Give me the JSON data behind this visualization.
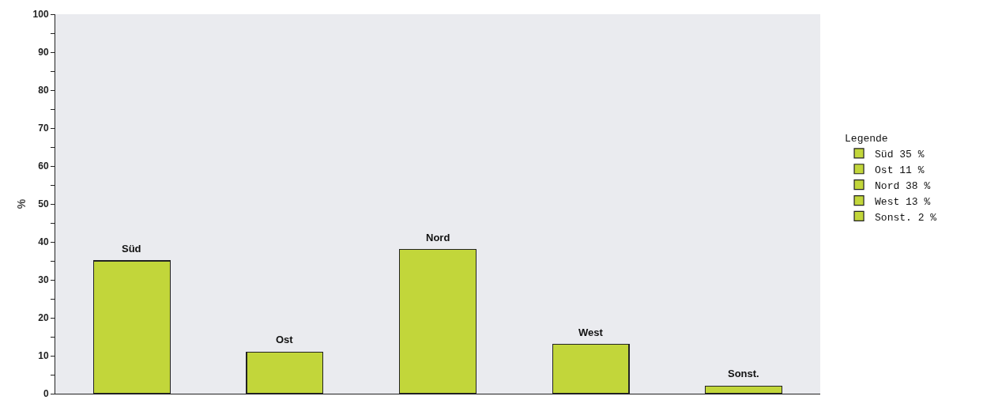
{
  "chart_data": {
    "type": "bar",
    "ylabel": "%",
    "legend_title": "Legende",
    "legend": "right",
    "tick_labels": "y",
    "stacked": true,
    "categories": [
      "Süd",
      "Ost",
      "Nord",
      "West",
      "Sonst."
    ],
    "series": [
      {
        "name": "Süd 35 %",
        "color": "#c2d63a",
        "values": [
          35,
          null,
          null,
          null,
          null
        ]
      },
      {
        "name": "Ost 11 %",
        "color": "#c2d63a",
        "values": [
          null,
          11,
          null,
          null,
          null
        ]
      },
      {
        "name": "Nord 38 %",
        "color": "#c2d63a",
        "values": [
          null,
          null,
          38,
          null,
          null
        ]
      },
      {
        "name": "West 13 %",
        "color": "#c2d63a",
        "values": [
          null,
          null,
          null,
          13,
          null
        ]
      },
      {
        "name": "Sonst. 2 %",
        "color": "#c2d63a",
        "values": [
          null,
          null,
          null,
          null,
          2
        ]
      }
    ],
    "ylim": [
      0,
      100
    ],
    "yticks": [
      0,
      {
        "value": 5,
        "label": null
      },
      10,
      {
        "value": 15,
        "label": null
      },
      20,
      {
        "value": 25,
        "label": null
      },
      30,
      {
        "value": 35,
        "label": null
      },
      40,
      {
        "value": 45,
        "label": null
      },
      50,
      {
        "value": 55,
        "label": null
      },
      60,
      {
        "value": 65,
        "label": null
      },
      70,
      {
        "value": 75,
        "label": null
      },
      80,
      {
        "value": 85,
        "label": null
      },
      90,
      {
        "value": 95,
        "label": null
      },
      100
    ]
  }
}
